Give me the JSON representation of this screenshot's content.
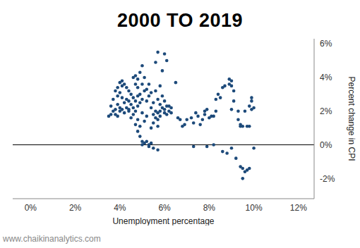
{
  "chart_data": {
    "type": "scatter",
    "title": "2000 TO 2019",
    "x_label": "Unemployment percentage",
    "y_label": "Percent change in CPI",
    "source": "www.chaikinanalytics.com",
    "color": "#1d4a7a",
    "marker": "circle",
    "grid": false,
    "xlim": [
      -0.8,
      12.7
    ],
    "ylim": [
      -3.2,
      6.3
    ],
    "xticks": [
      {
        "value": 0,
        "label": "0%"
      },
      {
        "value": 2,
        "label": "2%"
      },
      {
        "value": 4,
        "label": "4%"
      },
      {
        "value": 6,
        "label": "6%"
      },
      {
        "value": 8,
        "label": "8%"
      },
      {
        "value": 10,
        "label": "10%"
      },
      {
        "value": 12,
        "label": "12%"
      }
    ],
    "yticks": [
      {
        "value": -2,
        "label": "-2%"
      },
      {
        "value": 0,
        "label": "0%"
      },
      {
        "value": 2,
        "label": "2%"
      },
      {
        "value": 4,
        "label": "4%"
      },
      {
        "value": 6,
        "label": "6%"
      }
    ],
    "x": [
      3.5,
      3.6,
      3.6,
      3.7,
      3.7,
      3.8,
      3.8,
      3.8,
      3.9,
      3.9,
      3.9,
      3.9,
      4.0,
      4.0,
      4.0,
      4.0,
      4.1,
      4.1,
      4.1,
      4.1,
      4.2,
      4.2,
      4.2,
      4.3,
      4.3,
      4.3,
      4.4,
      4.4,
      4.4,
      4.4,
      4.5,
      4.5,
      4.5,
      4.6,
      4.6,
      4.6,
      4.6,
      4.7,
      4.7,
      4.7,
      4.7,
      4.7,
      4.8,
      4.8,
      4.8,
      4.8,
      4.8,
      4.8,
      4.9,
      4.9,
      4.9,
      4.9,
      4.9,
      5.0,
      5.0,
      5.0,
      5.0,
      5.0,
      5.0,
      5.1,
      5.1,
      5.1,
      5.1,
      5.2,
      5.2,
      5.2,
      5.2,
      5.3,
      5.3,
      5.3,
      5.3,
      5.4,
      5.4,
      5.4,
      5.4,
      5.5,
      5.5,
      5.5,
      5.5,
      5.6,
      5.6,
      5.6,
      5.6,
      5.7,
      5.7,
      5.7,
      5.7,
      5.7,
      5.7,
      5.8,
      5.8,
      5.8,
      5.8,
      5.9,
      5.9,
      5.9,
      6.0,
      6.0,
      6.0,
      6.0,
      6.1,
      6.1,
      6.1,
      6.2,
      6.2,
      6.3,
      6.3,
      6.5,
      6.6,
      6.7,
      6.8,
      6.9,
      7.0,
      7.2,
      7.3,
      7.3,
      7.4,
      7.5,
      7.6,
      7.7,
      7.8,
      7.8,
      7.9,
      7.9,
      8.0,
      8.1,
      8.2,
      8.2,
      8.3,
      8.3,
      8.4,
      8.5,
      8.6,
      8.6,
      8.7,
      8.8,
      8.9,
      8.9,
      9.0,
      9.0,
      9.0,
      9.0,
      9.1,
      9.1,
      9.2,
      9.3,
      9.3,
      9.4,
      9.4,
      9.4,
      9.5,
      9.5,
      9.5,
      9.6,
      9.6,
      9.7,
      9.7,
      9.8,
      9.8,
      9.9,
      9.9,
      9.9,
      10.0,
      10.0,
      9.8
    ],
    "values": [
      1.7,
      1.8,
      2.3,
      2.0,
      2.7,
      3.2,
      2.1,
      1.8,
      3.4,
      2.9,
      2.4,
      1.7,
      3.7,
      3.1,
      2.2,
      2.0,
      3.5,
      2.8,
      2.1,
      3.8,
      3.6,
      2.5,
      1.9,
      3.4,
      2.7,
      2.2,
      2.6,
      3.2,
      2.0,
      2.1,
      2.4,
      3.0,
      1.6,
      2.8,
      4.0,
      2.2,
      1.8,
      4.1,
      3.6,
      2.6,
      1.2,
      2.0,
      3.9,
      3.4,
      2.9,
      1.5,
      0.8,
      2.3,
      4.3,
      3.0,
      1.1,
      0.5,
      2.5,
      4.7,
      3.6,
      2.7,
      1.9,
      0.2,
      0.0,
      4.0,
      3.2,
      0.1,
      1.4,
      3.3,
      2.6,
      0.2,
      1.7,
      2.9,
      3.6,
      0.0,
      -0.1,
      3.1,
      2.2,
      1.0,
      0.1,
      2.5,
      1.8,
      1.3,
      -0.2,
      2.0,
      1.6,
      4.9,
      3.2,
      1.5,
      1.9,
      1.1,
      5.5,
      2.7,
      -0.3,
      2.4,
      3.5,
      1.7,
      2.0,
      2.2,
      4.4,
      2.9,
      2.1,
      5.4,
      1.9,
      2.6,
      2.3,
      5.0,
      1.8,
      2.0,
      2.3,
      1.9,
      2.2,
      3.7,
      1.6,
      1.5,
      1.1,
      1.2,
      1.5,
      1.6,
      -0.1,
      1.3,
      1.9,
      1.7,
      1.2,
      1.5,
      2.0,
      1.8,
      -0.1,
      2.1,
      1.6,
      1.7,
      0.0,
      1.7,
      2.7,
      2.0,
      3.0,
      2.8,
      3.4,
      -0.4,
      3.5,
      -0.5,
      3.6,
      3.9,
      3.8,
      3.5,
      2.1,
      -0.2,
      3.2,
      2.6,
      -0.8,
      1.5,
      2.0,
      -1.3,
      1.2,
      1.1,
      -1.4,
      1.1,
      -2.0,
      -1.6,
      2.0,
      1.1,
      -1.5,
      2.3,
      -1.4,
      2.6,
      2.1,
      2.8,
      2.2,
      -0.2,
      1.1
    ]
  }
}
